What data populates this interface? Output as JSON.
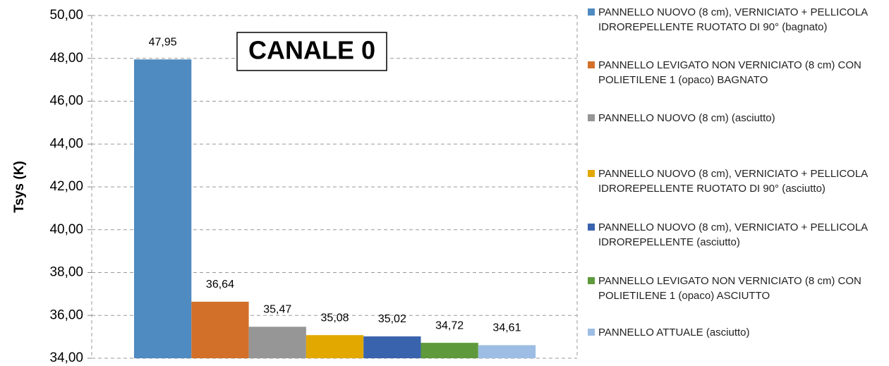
{
  "chart_data": {
    "type": "bar",
    "title": "CANALE 0",
    "y_label": "Tsys (K)",
    "ylim": [
      34,
      50
    ],
    "yticks": [
      {
        "value": 34,
        "label": "34,00"
      },
      {
        "value": 36,
        "label": "36,00"
      },
      {
        "value": 38,
        "label": "38,00"
      },
      {
        "value": 40,
        "label": "40,00"
      },
      {
        "value": 42,
        "label": "42,00"
      },
      {
        "value": 44,
        "label": "44,00"
      },
      {
        "value": 46,
        "label": "46,00"
      },
      {
        "value": 48,
        "label": "48,00"
      },
      {
        "value": 50,
        "label": "50,00"
      }
    ],
    "grid": true,
    "legend": "right",
    "series": [
      {
        "name": "PANNELLO NUOVO (8 cm), VERNICIATO + PELLICOLA IDROREPELLENTE RUOTATO DI 90° (bagnato)",
        "color": "#4f8ac0",
        "values": [
          47.95
        ],
        "value_labels": [
          "47,95"
        ]
      },
      {
        "name": "PANNELLO LEVIGATO NON VERNICIATO (8 cm) CON POLIETILENE 1 (opaco)  BAGNATO",
        "color": "#d2702a",
        "values": [
          36.64
        ],
        "value_labels": [
          "36,64"
        ]
      },
      {
        "name": "PANNELLO NUOVO (8 cm) (asciutto)",
        "color": "#969696",
        "values": [
          35.47
        ],
        "value_labels": [
          "35,47"
        ]
      },
      {
        "name": "PANNELLO NUOVO (8 cm), VERNICIATO + PELLICOLA IDROREPELLENTE RUOTATO DI 90° (asciutto)",
        "color": "#e2a800",
        "values": [
          35.08
        ],
        "value_labels": [
          "35,08"
        ]
      },
      {
        "name": "PANNELLO NUOVO (8 cm), VERNICIATO + PELLICOLA IDROREPELLENTE (asciutto)",
        "color": "#3a63ae",
        "values": [
          35.02
        ],
        "value_labels": [
          "35,02"
        ]
      },
      {
        "name": "PANNELLO LEVIGATO NON VERNICIATO (8 cm) CON POLIETILENE 1 (opaco) ASCIUTTO",
        "color": "#5e9a3b",
        "values": [
          34.72
        ],
        "value_labels": [
          "34,72"
        ]
      },
      {
        "name": "PANNELLO ATTUALE (asciutto)",
        "color": "#9dbde4",
        "values": [
          34.61
        ],
        "value_labels": [
          "34,61"
        ]
      }
    ]
  }
}
